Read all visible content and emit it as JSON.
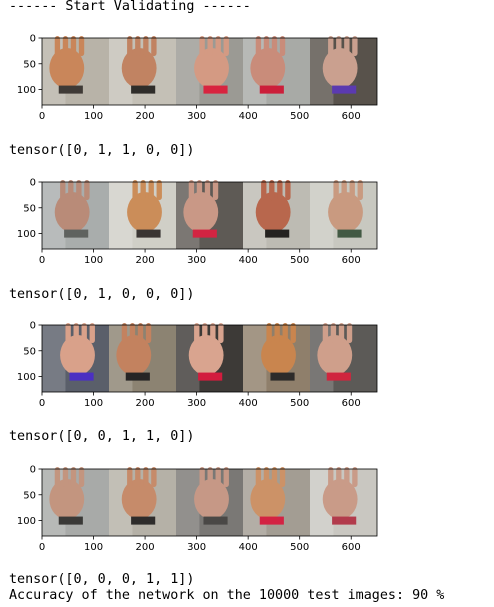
{
  "header": "------ Start Validating ------",
  "axes": {
    "x_ticks": [
      "0",
      "100",
      "200",
      "300",
      "400",
      "500",
      "600"
    ],
    "y_ticks": [
      "0",
      "50",
      "100"
    ]
  },
  "batches": [
    {
      "tensor": "tensor([0, 1, 1, 0, 0])",
      "tiles": [
        {
          "bg": "#b8b3a8",
          "obj": "#c9865a",
          "acc": "#3f3a36"
        },
        {
          "bg": "#c4c0b6",
          "obj": "#c18362",
          "acc": "#2f2d2a"
        },
        {
          "bg": "#9b9a94",
          "obj": "#d49a83",
          "acc": "#d8243f"
        },
        {
          "bg": "#a8aaa6",
          "obj": "#c98c7a",
          "acc": "#cc1f3a"
        },
        {
          "bg": "#58524b",
          "obj": "#caa08f",
          "acc": "#5b3ab0"
        }
      ]
    },
    {
      "tensor": "tensor([0, 1, 0, 0, 0])",
      "tiles": [
        {
          "bg": "#a9adac",
          "obj": "#b98b78",
          "acc": "#5f625f"
        },
        {
          "bg": "#d0cfc7",
          "obj": "#cb8d59",
          "acc": "#3a3533"
        },
        {
          "bg": "#5e5a55",
          "obj": "#c99886",
          "acc": "#d32442"
        },
        {
          "bg": "#bdbbb3",
          "obj": "#b8674d",
          "acc": "#242220"
        },
        {
          "bg": "#c8c8c0",
          "obj": "#c99a80",
          "acc": "#435a44"
        }
      ]
    },
    {
      "tensor": "tensor([0, 0, 1, 1, 0])",
      "tiles": [
        {
          "bg": "#5a5f6a",
          "obj": "#d9a18a",
          "acc": "#4b2fc2"
        },
        {
          "bg": "#8c8372",
          "obj": "#c3825f",
          "acc": "#262525"
        },
        {
          "bg": "#3d3a37",
          "obj": "#d9a48f",
          "acc": "#d21c3e"
        },
        {
          "bg": "#8f7f6b",
          "obj": "#c9854e",
          "acc": "#2d2b2a"
        },
        {
          "bg": "#5c5a57",
          "obj": "#cf9f8b",
          "acc": "#d0253e"
        }
      ]
    },
    {
      "tensor": "tensor([0, 0, 0, 1, 1])",
      "tiles": [
        {
          "bg": "#a8aaa8",
          "obj": "#c3957f",
          "acc": "#3a3937"
        },
        {
          "bg": "#b5b1a7",
          "obj": "#c68b6a",
          "acc": "#2e2c2b"
        },
        {
          "bg": "#7a7875",
          "obj": "#c69886",
          "acc": "#4a4846"
        },
        {
          "bg": "#a39d93",
          "obj": "#cc9267",
          "acc": "#d32343"
        },
        {
          "bg": "#c9c7c1",
          "obj": "#c99b88",
          "acc": "#b23b4c"
        }
      ]
    }
  ],
  "footer": "Accuracy of the network on the 10000 test images: 90 %"
}
